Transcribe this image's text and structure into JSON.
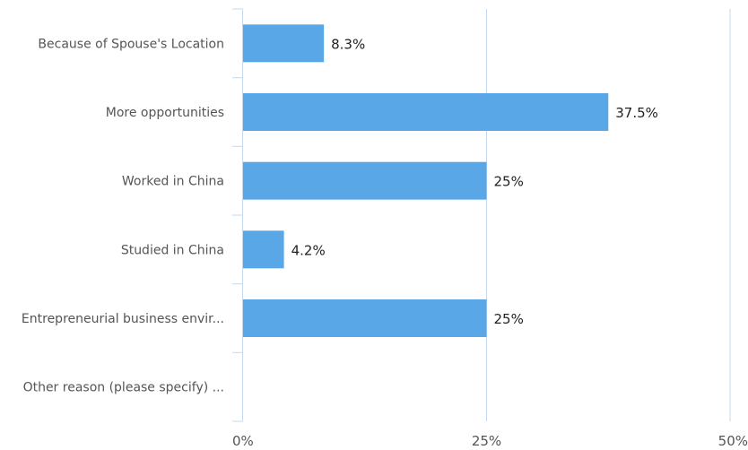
{
  "chart_data": {
    "type": "bar",
    "orientation": "horizontal",
    "categories": [
      "Because of Spouse's Location",
      "More opportunities",
      "Worked in China",
      "Studied in China",
      "Entrepreneurial business envir...",
      "Other reason (please specify) ..."
    ],
    "values": [
      8.3,
      37.5,
      25,
      4.2,
      25,
      0
    ],
    "data_labels": [
      "8.3%",
      "37.5%",
      "25%",
      "4.2%",
      "25%",
      ""
    ],
    "xlim": [
      0,
      50
    ],
    "x_ticks": [
      0,
      25,
      50
    ],
    "x_tick_labels": [
      "0%",
      "25%",
      "50%"
    ],
    "grid": true,
    "bar_color": "#5aa7e8",
    "grid_color": "#c6d8ea",
    "title": "",
    "xlabel": "",
    "ylabel": ""
  }
}
